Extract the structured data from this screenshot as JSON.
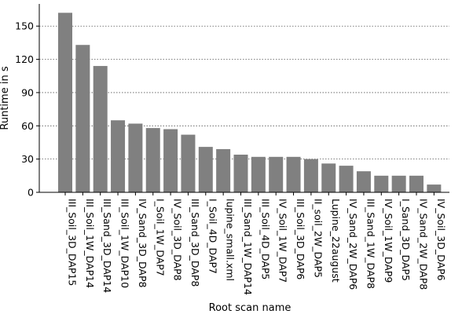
{
  "chart_data": {
    "type": "bar",
    "title": "",
    "xlabel": "Root scan name",
    "ylabel": "Runtime in s",
    "categories": [
      "III_Soil_3D_DAP15",
      "III_Soil_1W_DAP14",
      "III_Sand_3D_DAP14",
      "III_Soil_1W_DAP10",
      "IV_Sand_3D_DAP8",
      "I_Soil_1W_DAP7",
      "IV_Soil_3D_DAP8",
      "III_Sand_3D_DAP8",
      "I_Soil_4D_DAP7",
      "lupine_small.xml",
      "III_Sand_1W_DAP14",
      "III_Soil_4D_DAP5",
      "IV_Soil_1W_DAP7",
      "III_Soil_3D_DAP6",
      "II_soil_2W_DAP5",
      "Lupine_22august",
      "IV_Sand_2W_DAP6",
      "III_Sand_1W_DAP8",
      "IV_Soil_1W_DAP9",
      "I_Sand_3D_DAP5",
      "IV_Sand_2W_DAP8",
      "IV_Soil_3D_DAP6"
    ],
    "values": [
      162,
      133,
      114,
      65,
      62,
      58,
      57,
      52,
      41,
      39,
      34,
      32,
      32,
      32,
      30,
      26,
      24,
      19,
      15,
      15,
      15,
      7
    ],
    "ylim": [
      0,
      170
    ],
    "yticks": [
      0,
      30,
      60,
      90,
      120,
      150
    ],
    "grid": "y-dotted",
    "legend": "none",
    "bar_color": "#808080"
  }
}
